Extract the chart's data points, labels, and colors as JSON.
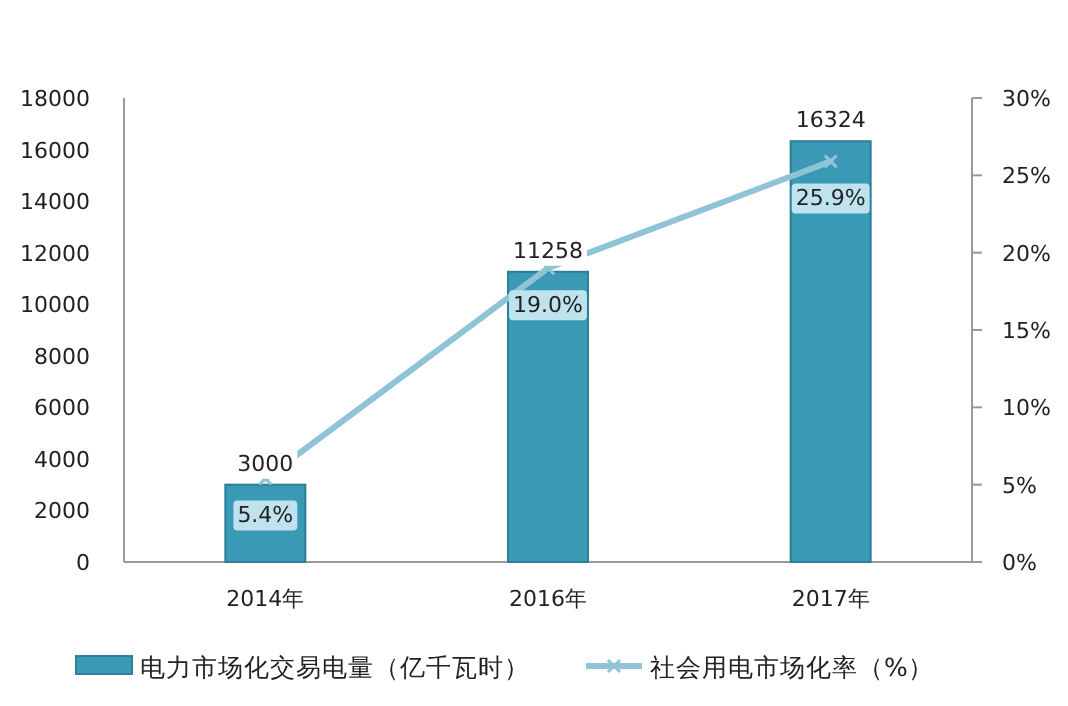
{
  "chart_data": {
    "type": "bar",
    "categories": [
      "2014年",
      "2016年",
      "2017年"
    ],
    "series": [
      {
        "name": "电力市场化交易电量（亿千瓦时）",
        "color": "#3a9ab5",
        "values": [
          3000,
          11258,
          16324
        ],
        "value_labels": [
          "3000",
          "11258",
          "16324"
        ]
      },
      {
        "name": "社会用电市场化率（%）",
        "type": "line",
        "axis": "y2",
        "color": "#8fc3d6",
        "marker": "cross",
        "values": [
          5.4,
          19.0,
          25.9
        ],
        "value_labels": [
          "5.4%",
          "19.0%",
          "25.9%"
        ]
      }
    ],
    "ylim": [
      0,
      18000
    ],
    "yticks": [
      0,
      2000,
      4000,
      6000,
      8000,
      10000,
      12000,
      14000,
      16000,
      18000
    ],
    "y2lim": [
      0,
      30
    ],
    "y2ticks": [
      {
        "value": 0,
        "label": "0%"
      },
      {
        "value": 5,
        "label": "5%"
      },
      {
        "value": 10,
        "label": "10%"
      },
      {
        "value": 15,
        "label": "15%"
      },
      {
        "value": 20,
        "label": "20%"
      },
      {
        "value": 25,
        "label": "25%"
      },
      {
        "value": 30,
        "label": "30%"
      }
    ],
    "grid": false,
    "legend": "bottom"
  }
}
